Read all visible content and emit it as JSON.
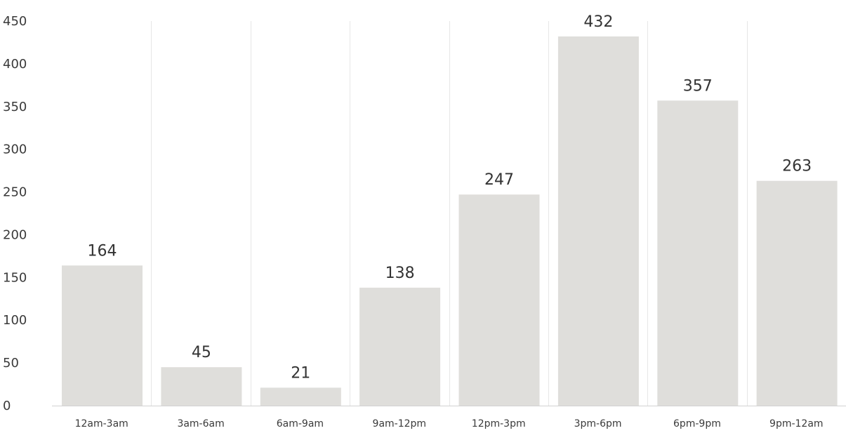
{
  "chart_data": {
    "type": "bar",
    "title": "",
    "xlabel": "",
    "ylabel": "",
    "categories": [
      "12am-3am",
      "3am-6am",
      "6am-9am",
      "9am-12pm",
      "12pm-3pm",
      "3pm-6pm",
      "6pm-9pm",
      "9pm-12am"
    ],
    "values": [
      164,
      45,
      21,
      138,
      247,
      432,
      357,
      263
    ],
    "data_labels": [
      "164",
      "45",
      "21",
      "138",
      "247",
      "432",
      "357",
      "263"
    ],
    "ylim": [
      0,
      450
    ],
    "yticks": [
      0,
      50,
      100,
      150,
      200,
      250,
      300,
      350,
      400,
      450
    ],
    "ytick_labels": [
      "0",
      "50",
      "100",
      "150",
      "200",
      "250",
      "300",
      "350",
      "400",
      "450"
    ],
    "grid": "vertical category separators",
    "legend": "none",
    "colors": {
      "bar": "#dfdedb",
      "grid": "#e6e6e6",
      "axis": "#d2d2d2",
      "text": "#333333"
    }
  }
}
